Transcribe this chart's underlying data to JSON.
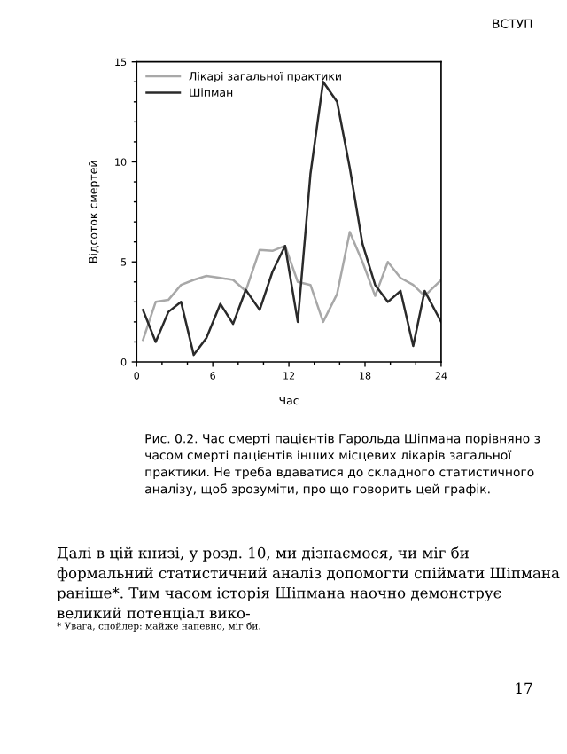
{
  "chart_data": {
    "type": "line",
    "xlabel": "Час",
    "ylabel": "Відсоток смертей",
    "xlim": [
      0,
      24
    ],
    "xticks": [
      0,
      6,
      12,
      18,
      24
    ],
    "ylim": [
      0,
      15
    ],
    "yticks": [
      0,
      5,
      10,
      15
    ],
    "grid": false,
    "legend": "top left",
    "marker": "none",
    "line_style": "solid",
    "series": [
      {
        "name": "Лікарі загальної практики",
        "color": "#a8a8a8",
        "x": [
          0.5,
          1.5,
          2.5,
          3.5,
          4.5,
          5.5,
          6.6,
          7.6,
          8.6,
          9.7,
          10.7,
          11.7,
          12.7,
          13.7,
          14.7,
          15.8,
          16.8,
          17.8,
          18.8,
          19.8,
          20.8,
          21.8,
          22.7,
          24
        ],
        "values": [
          1.1,
          3.0,
          3.1,
          3.85,
          4.1,
          4.3,
          4.2,
          4.1,
          3.55,
          5.6,
          5.55,
          5.8,
          4.0,
          3.85,
          2.0,
          3.4,
          6.5,
          5.0,
          3.3,
          5.0,
          4.2,
          3.85,
          3.3,
          4.1
        ]
      },
      {
        "name": "Шіпман",
        "color": "#2a2a2a",
        "x": [
          0.5,
          1.5,
          2.5,
          3.5,
          4.5,
          5.5,
          6.6,
          7.6,
          8.6,
          9.7,
          10.7,
          11.7,
          12.7,
          13.7,
          14.7,
          15.8,
          16.8,
          17.8,
          18.8,
          19.8,
          20.8,
          21.8,
          22.7,
          24
        ],
        "values": [
          2.6,
          1.0,
          2.5,
          3.0,
          0.35,
          1.2,
          2.9,
          1.9,
          3.6,
          2.6,
          4.5,
          5.8,
          2.0,
          9.4,
          14.0,
          13.0,
          9.7,
          5.9,
          3.85,
          3.0,
          3.55,
          0.8,
          3.55,
          2.0
        ]
      }
    ],
    "annotations": [
      "ВСТУП",
      "Рис. 0.2. Час смерті пацієнтів Гарольда Шіпмана порівняно з часом смерті пацієнтів інших місцевих лікарів загальної практики. Не треба вдаватися до складного статистичного аналізу, щоб зрозуміти, про що говорить цей графік.",
      "Далі в цій книзі, у розд. 10, ми дізнаємося, чи міг би формальний статистичний аналіз допомогти спіймати Шіпмана раніше*. Тим часом історія Шіпмана наочно демонструє великий потенціал вико-",
      "* Увага, спойлер: майже напевно, міг би.",
      "17"
    ]
  }
}
